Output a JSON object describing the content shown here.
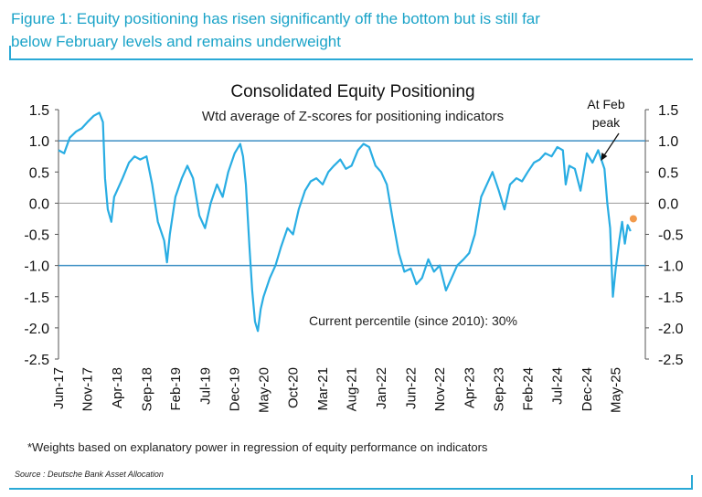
{
  "figure": {
    "title_line1": "Figure 1: Equity positioning has risen significantly off the bottom but is still far",
    "title_line2": "below February levels and remains underweight",
    "footnote": "*Weights based on explanatory power in regression of equity performance on indicators",
    "source": "Source : Deutsche Bank Asset Allocation"
  },
  "colors": {
    "accent": "#2aa9d6",
    "series": "#29ade3",
    "reference": "#3d8fc4",
    "current": "#f29a4b",
    "title": "#1aa3c8"
  },
  "chart_data": {
    "type": "line",
    "title": "Consolidated Equity Positioning",
    "subtitle": "Wtd average of Z-scores for positioning indicators",
    "ylim": [
      -2.5,
      1.5
    ],
    "yticks": [
      "1.5",
      "1.0",
      "0.5",
      "0.0",
      "-0.5",
      "-1.0",
      "-1.5",
      "-2.0",
      "-2.5"
    ],
    "ytick_values": [
      1.5,
      1.0,
      0.5,
      0.0,
      -0.5,
      -1.0,
      -1.5,
      -2.0,
      -2.5
    ],
    "reference_lines": [
      1.0,
      -1.0
    ],
    "zero_line": 0.0,
    "x_range": [
      2017.42,
      2025.75
    ],
    "x_categories": [
      "Jun-17",
      "Nov-17",
      "Apr-18",
      "Sep-18",
      "Feb-19",
      "Jul-19",
      "Dec-19",
      "May-20",
      "Oct-20",
      "Mar-21",
      "Aug-21",
      "Jan-22",
      "Jun-22",
      "Nov-22",
      "Apr-23",
      "Sep-23",
      "Feb-24",
      "Jul-24",
      "Dec-24",
      "May-25"
    ],
    "x_tick_positions": [
      2017.42,
      2017.83,
      2018.25,
      2018.67,
      2019.08,
      2019.5,
      2019.92,
      2020.33,
      2020.75,
      2021.17,
      2021.58,
      2022.0,
      2022.42,
      2022.83,
      2023.25,
      2023.67,
      2024.08,
      2024.5,
      2024.92,
      2025.33
    ],
    "series": [
      {
        "name": "Consolidated Equity Positioning",
        "points": [
          [
            2017.42,
            0.85
          ],
          [
            2017.5,
            0.8
          ],
          [
            2017.58,
            1.05
          ],
          [
            2017.67,
            1.15
          ],
          [
            2017.75,
            1.2
          ],
          [
            2017.83,
            1.3
          ],
          [
            2017.92,
            1.4
          ],
          [
            2018.0,
            1.45
          ],
          [
            2018.05,
            1.3
          ],
          [
            2018.08,
            0.4
          ],
          [
            2018.12,
            -0.1
          ],
          [
            2018.17,
            -0.3
          ],
          [
            2018.21,
            0.1
          ],
          [
            2018.25,
            0.2
          ],
          [
            2018.33,
            0.4
          ],
          [
            2018.42,
            0.65
          ],
          [
            2018.5,
            0.75
          ],
          [
            2018.58,
            0.7
          ],
          [
            2018.67,
            0.75
          ],
          [
            2018.75,
            0.3
          ],
          [
            2018.83,
            -0.3
          ],
          [
            2018.92,
            -0.6
          ],
          [
            2018.96,
            -0.95
          ],
          [
            2019.0,
            -0.5
          ],
          [
            2019.08,
            0.1
          ],
          [
            2019.17,
            0.4
          ],
          [
            2019.25,
            0.6
          ],
          [
            2019.33,
            0.4
          ],
          [
            2019.42,
            -0.2
          ],
          [
            2019.5,
            -0.4
          ],
          [
            2019.58,
            0.0
          ],
          [
            2019.67,
            0.3
          ],
          [
            2019.75,
            0.1
          ],
          [
            2019.83,
            0.5
          ],
          [
            2019.92,
            0.8
          ],
          [
            2020.0,
            0.95
          ],
          [
            2020.04,
            0.75
          ],
          [
            2020.08,
            0.3
          ],
          [
            2020.13,
            -0.7
          ],
          [
            2020.17,
            -1.4
          ],
          [
            2020.21,
            -1.9
          ],
          [
            2020.25,
            -2.05
          ],
          [
            2020.29,
            -1.7
          ],
          [
            2020.33,
            -1.5
          ],
          [
            2020.42,
            -1.2
          ],
          [
            2020.5,
            -1.0
          ],
          [
            2020.58,
            -0.7
          ],
          [
            2020.67,
            -0.4
          ],
          [
            2020.75,
            -0.5
          ],
          [
            2020.83,
            -0.1
          ],
          [
            2020.92,
            0.2
          ],
          [
            2021.0,
            0.35
          ],
          [
            2021.08,
            0.4
          ],
          [
            2021.17,
            0.3
          ],
          [
            2021.25,
            0.5
          ],
          [
            2021.33,
            0.6
          ],
          [
            2021.42,
            0.7
          ],
          [
            2021.5,
            0.55
          ],
          [
            2021.58,
            0.6
          ],
          [
            2021.67,
            0.85
          ],
          [
            2021.75,
            0.95
          ],
          [
            2021.83,
            0.9
          ],
          [
            2021.92,
            0.6
          ],
          [
            2022.0,
            0.5
          ],
          [
            2022.08,
            0.3
          ],
          [
            2022.17,
            -0.3
          ],
          [
            2022.25,
            -0.8
          ],
          [
            2022.33,
            -1.1
          ],
          [
            2022.42,
            -1.05
          ],
          [
            2022.5,
            -1.3
          ],
          [
            2022.58,
            -1.2
          ],
          [
            2022.67,
            -0.9
          ],
          [
            2022.75,
            -1.1
          ],
          [
            2022.83,
            -1.0
          ],
          [
            2022.92,
            -1.4
          ],
          [
            2023.0,
            -1.2
          ],
          [
            2023.08,
            -1.0
          ],
          [
            2023.17,
            -0.9
          ],
          [
            2023.25,
            -0.8
          ],
          [
            2023.33,
            -0.5
          ],
          [
            2023.42,
            0.1
          ],
          [
            2023.5,
            0.3
          ],
          [
            2023.58,
            0.5
          ],
          [
            2023.67,
            0.2
          ],
          [
            2023.75,
            -0.1
          ],
          [
            2023.83,
            0.3
          ],
          [
            2023.92,
            0.4
          ],
          [
            2024.0,
            0.35
          ],
          [
            2024.08,
            0.5
          ],
          [
            2024.17,
            0.65
          ],
          [
            2024.25,
            0.7
          ],
          [
            2024.33,
            0.8
          ],
          [
            2024.42,
            0.75
          ],
          [
            2024.5,
            0.9
          ],
          [
            2024.58,
            0.85
          ],
          [
            2024.62,
            0.3
          ],
          [
            2024.67,
            0.6
          ],
          [
            2024.75,
            0.55
          ],
          [
            2024.83,
            0.2
          ],
          [
            2024.92,
            0.8
          ],
          [
            2025.0,
            0.65
          ],
          [
            2025.08,
            0.85
          ],
          [
            2025.17,
            0.55
          ],
          [
            2025.21,
            0.0
          ],
          [
            2025.25,
            -0.4
          ],
          [
            2025.29,
            -1.5
          ],
          [
            2025.33,
            -1.05
          ],
          [
            2025.38,
            -0.6
          ],
          [
            2025.42,
            -0.3
          ],
          [
            2025.46,
            -0.65
          ],
          [
            2025.5,
            -0.35
          ],
          [
            2025.54,
            -0.45
          ]
        ]
      }
    ],
    "current_point": [
      2025.58,
      -0.25
    ],
    "annotations": {
      "feb_peak": "At Feb\npeak",
      "feb_peak_target": [
        2025.08,
        0.62
      ],
      "current_percentile": "Current percentile (since 2010): 30%"
    }
  }
}
